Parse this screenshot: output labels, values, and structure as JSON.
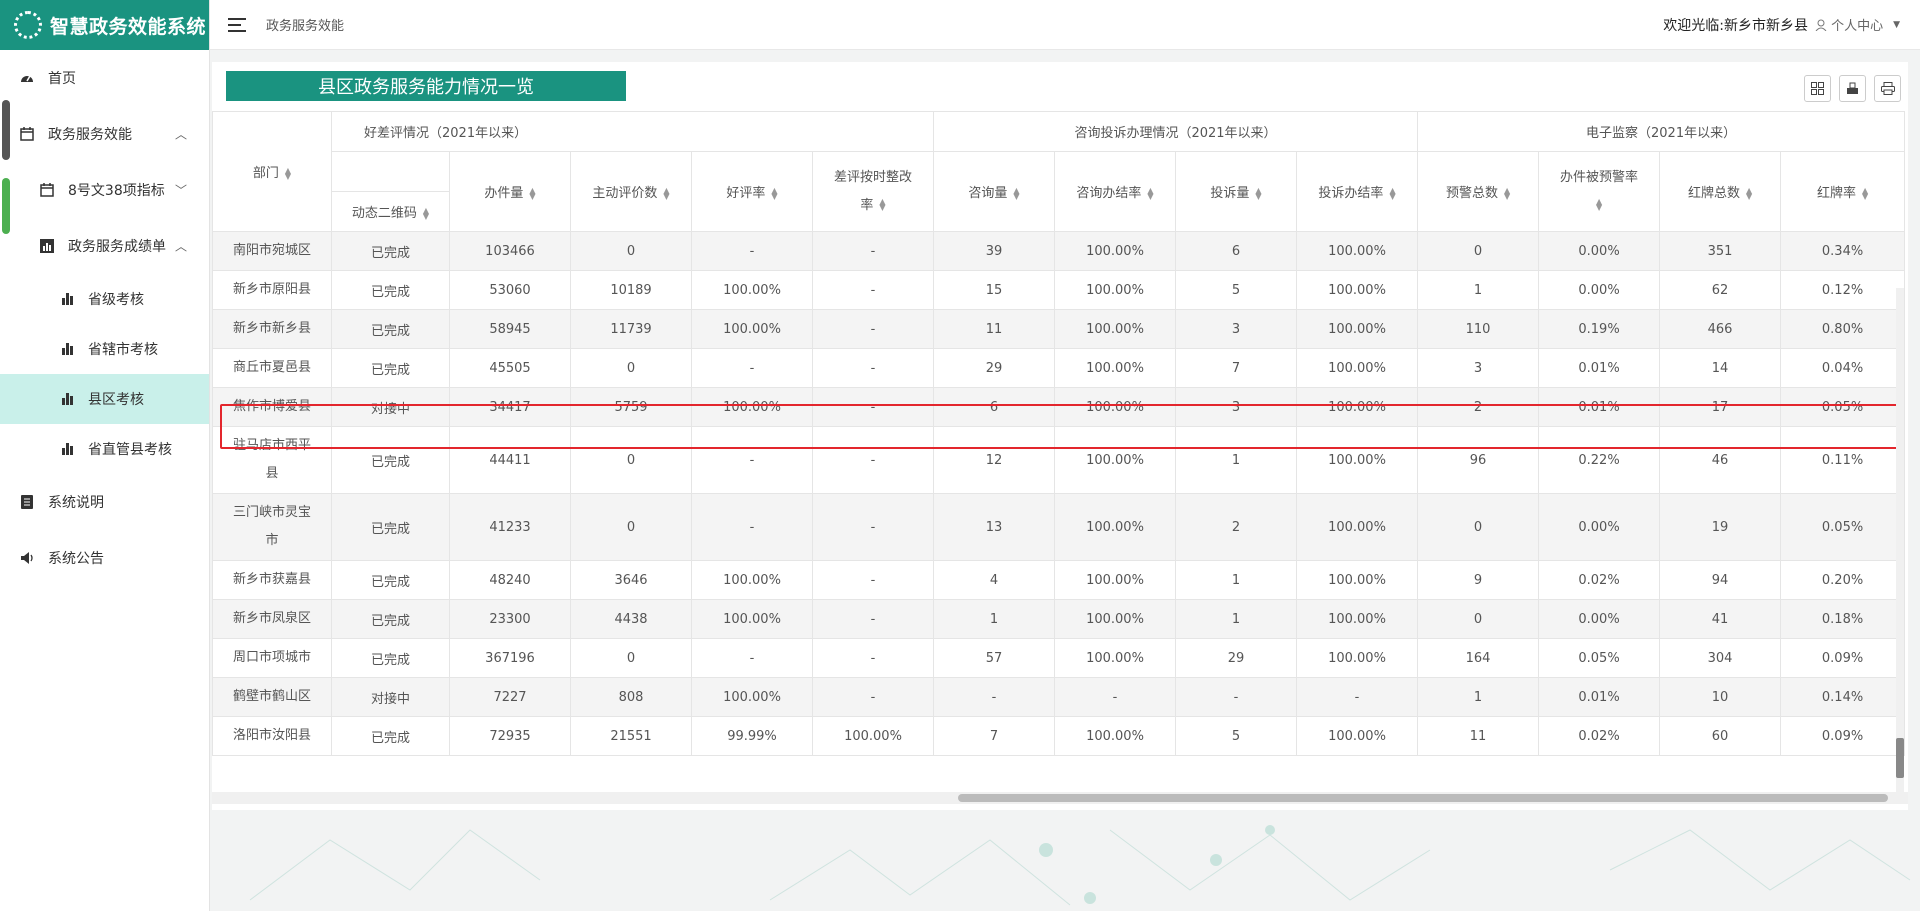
{
  "app": {
    "title": "智慧政务效能系统"
  },
  "sidebar": {
    "items": [
      {
        "label": "首页",
        "icon": "dashboard-icon"
      },
      {
        "label": "政务服务效能",
        "icon": "calendar-icon",
        "expanded": true
      },
      {
        "label": "8号文38项指标",
        "icon": "calendar-icon",
        "expanded": false
      },
      {
        "label": "政务服务成绩单",
        "icon": "bar-chart-icon",
        "expanded": true
      },
      {
        "label": "省级考核",
        "icon": "bar-chart-icon"
      },
      {
        "label": "省辖市考核",
        "icon": "bar-chart-icon"
      },
      {
        "label": "县区考核",
        "icon": "bar-chart-icon",
        "active": true
      },
      {
        "label": "省直管县考核",
        "icon": "bar-chart-icon"
      },
      {
        "label": "系统说明",
        "icon": "document-icon"
      },
      {
        "label": "系统公告",
        "icon": "speaker-icon"
      }
    ]
  },
  "topbar": {
    "breadcrumb": "政务服务效能",
    "welcome": "欢迎光临:新乡市新乡县",
    "user_center": "个人中心"
  },
  "panel": {
    "title": "县区政务服务能力情况一览",
    "tools": [
      "grid-icon",
      "export-icon",
      "print-icon"
    ]
  },
  "table": {
    "group_headers": [
      "好差评情况（2021年以来）",
      "咨询投诉办理情况（2021年以来）",
      "电子监察（2021年以来）"
    ],
    "headers": {
      "dept": "部门",
      "qr": "动态二维码",
      "cols": [
        "办件量",
        "主动评价数",
        "好评率",
        "差评按时整改率",
        "咨询量",
        "咨询办结率",
        "投诉量",
        "投诉办结率",
        "预警总数",
        "办件被预警率",
        "红牌总数",
        "红牌率"
      ]
    },
    "rows": [
      [
        "南阳市宛城区",
        "已完成",
        "103466",
        "0",
        "-",
        "-",
        "39",
        "100.00%",
        "6",
        "100.00%",
        "0",
        "0.00%",
        "351",
        "0.34%"
      ],
      [
        "新乡市原阳县",
        "已完成",
        "53060",
        "10189",
        "100.00%",
        "-",
        "15",
        "100.00%",
        "5",
        "100.00%",
        "1",
        "0.00%",
        "62",
        "0.12%"
      ],
      [
        "新乡市新乡县",
        "已完成",
        "58945",
        "11739",
        "100.00%",
        "-",
        "11",
        "100.00%",
        "3",
        "100.00%",
        "110",
        "0.19%",
        "466",
        "0.80%"
      ],
      [
        "商丘市夏邑县",
        "已完成",
        "45505",
        "0",
        "-",
        "-",
        "29",
        "100.00%",
        "7",
        "100.00%",
        "3",
        "0.01%",
        "14",
        "0.04%"
      ],
      [
        "焦作市博爱县",
        "对接中",
        "34417",
        "5759",
        "100.00%",
        "-",
        "6",
        "100.00%",
        "3",
        "100.00%",
        "2",
        "0.01%",
        "17",
        "0.05%"
      ],
      [
        "驻马店市西平县",
        "已完成",
        "44411",
        "0",
        "-",
        "-",
        "12",
        "100.00%",
        "1",
        "100.00%",
        "96",
        "0.22%",
        "46",
        "0.11%"
      ],
      [
        "三门峡市灵宝市",
        "已完成",
        "41233",
        "0",
        "-",
        "-",
        "13",
        "100.00%",
        "2",
        "100.00%",
        "0",
        "0.00%",
        "19",
        "0.05%"
      ],
      [
        "新乡市获嘉县",
        "已完成",
        "48240",
        "3646",
        "100.00%",
        "-",
        "4",
        "100.00%",
        "1",
        "100.00%",
        "9",
        "0.02%",
        "94",
        "0.20%"
      ],
      [
        "新乡市凤泉区",
        "已完成",
        "23300",
        "4438",
        "100.00%",
        "-",
        "1",
        "100.00%",
        "1",
        "100.00%",
        "0",
        "0.00%",
        "41",
        "0.18%"
      ],
      [
        "周口市项城市",
        "已完成",
        "367196",
        "0",
        "-",
        "-",
        "57",
        "100.00%",
        "29",
        "100.00%",
        "164",
        "0.05%",
        "304",
        "0.09%"
      ],
      [
        "鹤壁市鹤山区",
        "对接中",
        "7227",
        "808",
        "100.00%",
        "-",
        "-",
        "-",
        "-",
        "-",
        "1",
        "0.01%",
        "10",
        "0.14%"
      ],
      [
        "洛阳市汝阳县",
        "已完成",
        "72935",
        "21551",
        "99.99%",
        "100.00%",
        "7",
        "100.00%",
        "5",
        "100.00%",
        "11",
        "0.02%",
        "60",
        "0.09%"
      ]
    ],
    "highlighted_row": 2
  },
  "colors": {
    "brand": "#1a9380",
    "active_bg": "#c9f0ea",
    "highlight": "#e3262d"
  }
}
